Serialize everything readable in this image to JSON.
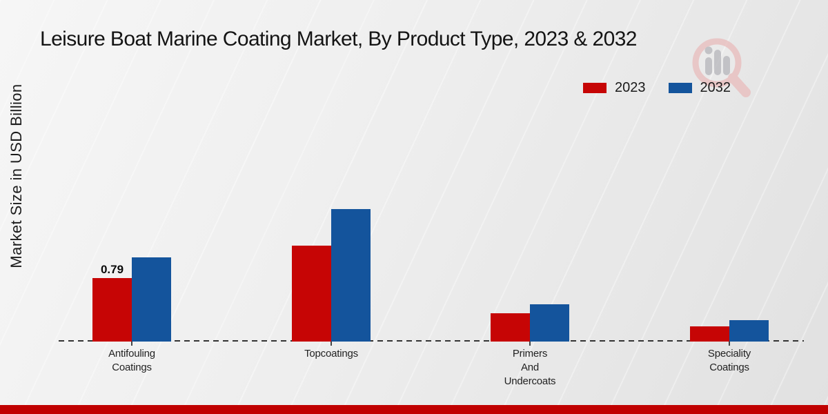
{
  "chart_data": {
    "type": "bar",
    "title": "Leisure Boat Marine Coating Market, By Product Type, 2023 & 2032",
    "ylabel": "Market Size in USD Billion",
    "xlabel": "",
    "categories": [
      "Antifouling Coatings",
      "Topcoatings",
      "Primers And Undercoats",
      "Speciality Coatings"
    ],
    "category_label_lines": [
      [
        "Antifouling",
        "Coatings"
      ],
      [
        "Topcoatings"
      ],
      [
        "Primers",
        "And",
        "Undercoats"
      ],
      [
        "Speciality",
        "Coatings"
      ]
    ],
    "series": [
      {
        "name": "2023",
        "color": "#c60505",
        "values": [
          0.79,
          1.19,
          0.35,
          0.19
        ]
      },
      {
        "name": "2032",
        "color": "#14549c",
        "values": [
          1.05,
          1.65,
          0.46,
          0.27
        ]
      }
    ],
    "value_labels": [
      {
        "series": "2023",
        "category": "Antifouling Coatings",
        "text": "0.79"
      }
    ],
    "ylim": [
      0,
      2
    ],
    "grid": false,
    "legend_position": "top-right",
    "baseline_style": "dashed"
  },
  "footer": {
    "bar_color": "#c00000"
  },
  "watermark": {
    "icon": "magnifier-bar-chart-logo"
  }
}
